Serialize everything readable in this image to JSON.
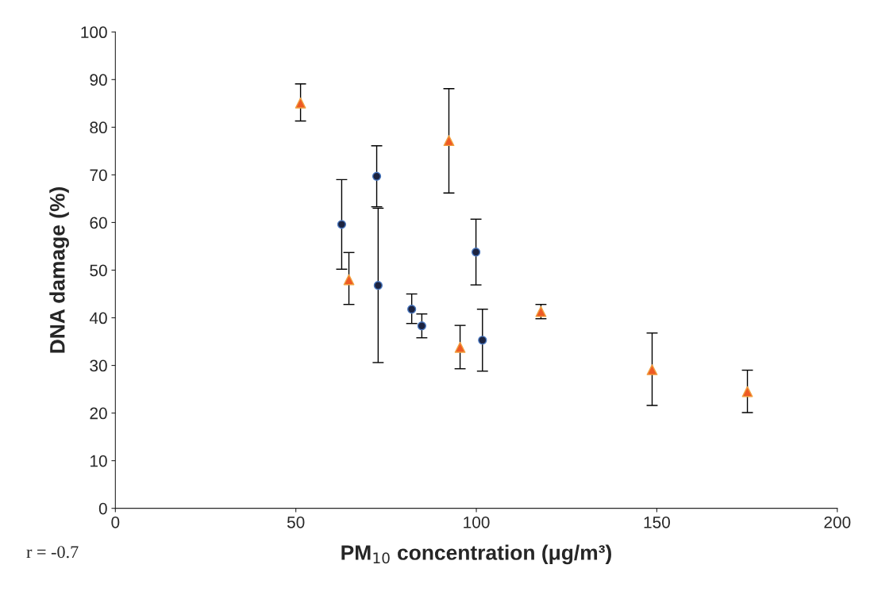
{
  "chart_data": {
    "type": "scatter",
    "xlabel": "PM$_{10}$ concentration (μg/m³)",
    "ylabel": "DNA damage (%)",
    "xlim": [
      0,
      200
    ],
    "xticks": [
      0,
      50,
      100,
      150,
      200
    ],
    "ylim": [
      0,
      100
    ],
    "yticks": [
      0,
      10,
      20,
      30,
      40,
      50,
      60,
      70,
      80,
      90,
      100
    ],
    "grid": false,
    "legend": false,
    "series": [
      {
        "color": "#1c2340",
        "marker": "circle",
        "x": [
          62.7,
          72.4,
          72.8,
          82.1,
          84.9,
          99.9,
          101.7
        ],
        "values": [
          59.6,
          69.7,
          46.8,
          41.8,
          38.3,
          53.8,
          35.3
        ],
        "errors": [
          [
            50.2,
            69.0
          ],
          [
            63.3,
            76.1
          ],
          [
            30.6,
            63.0
          ],
          [
            38.8,
            45.0
          ],
          [
            35.8,
            40.8
          ],
          [
            46.9,
            60.7
          ],
          [
            28.8,
            41.8
          ]
        ]
      },
      {
        "color": "#ee5a24",
        "marker": "triangle",
        "x": [
          51.3,
          64.7,
          92.4,
          95.5,
          117.9,
          148.7,
          175.1
        ],
        "values": [
          85.1,
          48.0,
          77.2,
          33.8,
          41.3,
          29.1,
          24.5
        ],
        "errors": [
          [
            81.3,
            89.1
          ],
          [
            42.8,
            53.7
          ],
          [
            66.2,
            88.1
          ],
          [
            29.3,
            38.4
          ],
          [
            39.8,
            42.8
          ],
          [
            21.6,
            36.8
          ],
          [
            20.1,
            29.0
          ]
        ]
      }
    ],
    "annotations": [
      "r = -0.7"
    ]
  }
}
